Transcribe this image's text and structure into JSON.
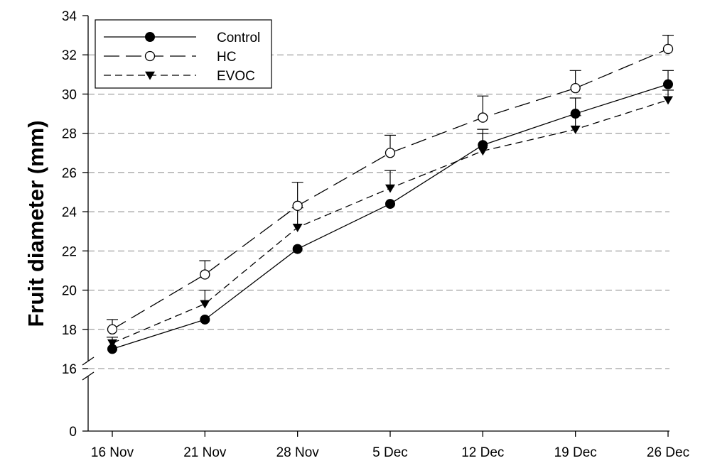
{
  "chart_data": {
    "type": "line",
    "title": "",
    "xlabel": "",
    "ylabel": "Fruit diameter (mm)",
    "categories": [
      "16 Nov",
      "21 Nov",
      "28 Nov",
      "5 Dec",
      "12 Dec",
      "19 Dec",
      "26 Dec"
    ],
    "yticks": [
      "0",
      "16",
      "18",
      "20",
      "22",
      "24",
      "26",
      "28",
      "30",
      "32",
      "34"
    ],
    "y_axis_break": [
      0,
      16
    ],
    "ylim": [
      16,
      34
    ],
    "grid": "horizontal dashed",
    "legend_position": "top-left",
    "series": [
      {
        "name": "Control",
        "marker": "filled-circle",
        "line_style": "solid",
        "values": [
          17.0,
          18.5,
          22.1,
          24.4,
          27.4,
          29.0,
          30.5
        ],
        "error_plus": [
          0.0,
          0.0,
          0.0,
          0.0,
          0.8,
          0.8,
          0.7
        ]
      },
      {
        "name": "HC",
        "marker": "open-circle",
        "line_style": "long-dash",
        "values": [
          18.0,
          20.8,
          24.3,
          27.0,
          28.8,
          30.3,
          32.3
        ],
        "error_plus": [
          0.5,
          0.7,
          1.2,
          0.9,
          1.1,
          0.9,
          0.7
        ]
      },
      {
        "name": "EVOC",
        "marker": "filled-triangle-down",
        "line_style": "short-dash",
        "values": [
          17.3,
          19.3,
          23.2,
          25.2,
          27.1,
          28.2,
          29.7
        ],
        "error_plus": [
          0.3,
          0.7,
          1.0,
          0.9,
          0.9,
          0.7,
          0.5
        ]
      }
    ]
  }
}
